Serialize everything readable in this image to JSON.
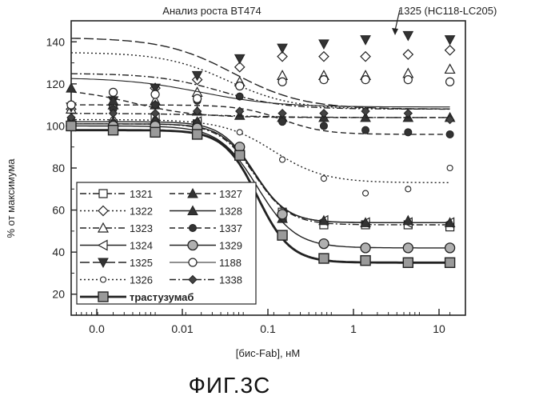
{
  "chart_data": {
    "type": "scatter",
    "title": "Анализ роста BT474",
    "xlabel": "[бис-Fab], нМ",
    "ylabel": "% от максимума",
    "xscale": "log",
    "xlim": [
      0.001,
      30
    ],
    "ylim": [
      10,
      150
    ],
    "x_ticks": [
      {
        "label": "0.0"
      },
      {
        "label": "0.01"
      },
      {
        "label": "0.1"
      },
      {
        "label": "1"
      },
      {
        "label": "10"
      }
    ],
    "y_ticks": [
      "20",
      "40",
      "60",
      "80",
      "100",
      "120",
      "140"
    ],
    "legend_position": "lower-left",
    "annotation": "1325 (HC118-LC205)",
    "caption": "ФИГ.3С",
    "x": [
      0.001,
      0.003,
      0.009,
      0.027,
      0.082,
      0.25,
      0.74,
      2.2,
      6.7,
      20
    ],
    "series": [
      {
        "name": "1321",
        "marker": "square-open",
        "line": "dashdot",
        "values": [
          100,
          101,
          104,
          101,
          87,
          59,
          53,
          53,
          53,
          52
        ],
        "fit": {
          "bottom": 53,
          "top": 101,
          "ec50": 0.12,
          "hill": 2.2
        }
      },
      {
        "name": "1322",
        "marker": "diamond-open",
        "line": "dotted",
        "values": [
          108,
          110,
          118,
          122,
          128,
          133,
          133,
          133,
          134,
          136
        ],
        "fit": {
          "bottom": 108,
          "top": 135,
          "ec50": 0.06,
          "hill": 1.2
        }
      },
      {
        "name": "1323",
        "marker": "triangle-open",
        "line": "dashdot",
        "values": [
          108,
          110,
          112,
          116,
          121,
          124,
          124,
          124,
          125,
          127
        ],
        "fit": {
          "bottom": 108,
          "top": 125,
          "ec50": 0.05,
          "hill": 1.2
        }
      },
      {
        "name": "1324",
        "marker": "left-triangle-open",
        "line": "solid",
        "values": [
          100,
          100,
          101,
          102,
          89,
          57,
          55,
          54,
          54,
          54
        ],
        "fit": {
          "bottom": 54,
          "top": 101,
          "ec50": 0.12,
          "hill": 2.3
        }
      },
      {
        "name": "1325",
        "marker": "triangle-down-filled",
        "line": "longdash",
        "values": [
          109,
          112,
          118,
          124,
          132,
          137,
          139,
          141,
          143,
          141
        ],
        "fit": {
          "bottom": 108,
          "top": 142,
          "ec50": 0.07,
          "hill": 1.1
        }
      },
      {
        "name": "1326",
        "marker": "circle-small-open",
        "line": "dotted",
        "values": [
          103,
          103,
          103,
          102,
          97,
          84,
          75,
          68,
          70,
          80
        ],
        "fit": {
          "bottom": 73,
          "top": 103,
          "ec50": 0.2,
          "hill": 1.5
        }
      },
      {
        "name": "1327",
        "marker": "triangle-filled",
        "line": "dashed",
        "values": [
          118,
          112,
          110,
          107,
          105,
          104,
          104,
          104,
          104,
          104
        ],
        "fit": {
          "bottom": 104,
          "top": 118,
          "ec50": 0.005,
          "hill": 1.2
        }
      },
      {
        "name": "1328",
        "marker": "triangle-filled",
        "line": "solid",
        "values": [
          100,
          102,
          103,
          102,
          88,
          56,
          55,
          54,
          55,
          54
        ],
        "fit": {
          "bottom": 54,
          "top": 102,
          "ec50": 0.12,
          "hill": 2.3
        }
      },
      {
        "name": "1337",
        "marker": "circle-filled-small",
        "line": "dashed",
        "values": [
          103,
          108,
          110,
          112,
          114,
          102,
          100,
          98,
          97,
          96
        ],
        "fit": {
          "bottom": 96,
          "top": 110,
          "ec50": 0.25,
          "hill": 1.8
        }
      },
      {
        "name": "1329",
        "marker": "circle-gray",
        "line": "solid",
        "values": [
          100,
          100,
          100,
          99,
          90,
          58,
          44,
          42,
          42,
          42
        ],
        "fit": {
          "bottom": 42,
          "top": 100,
          "ec50": 0.13,
          "hill": 2.0
        }
      },
      {
        "name": "1188",
        "marker": "circle-open",
        "line": "solid-thin",
        "values": [
          110,
          116,
          115,
          113,
          119,
          121,
          122,
          122,
          122,
          121
        ],
        "fit": {
          "bottom": 109,
          "top": 123,
          "ec50": 0.03,
          "hill": 1.0
        }
      },
      {
        "name": "1338",
        "marker": "diamond-filled",
        "line": "dashdot",
        "values": [
          104,
          106,
          106,
          107,
          107,
          106,
          106,
          107,
          106,
          103
        ],
        "fit": {
          "bottom": 104,
          "top": 106,
          "ec50": 0.05,
          "hill": 1.0
        }
      },
      {
        "name": "трастузумаб",
        "marker": "square-gray",
        "line": "bold",
        "values": [
          100,
          98,
          97,
          96,
          86,
          48,
          37,
          36,
          35,
          35
        ],
        "fit": {
          "bottom": 35,
          "top": 98,
          "ec50": 0.13,
          "hill": 2.3
        }
      }
    ]
  }
}
